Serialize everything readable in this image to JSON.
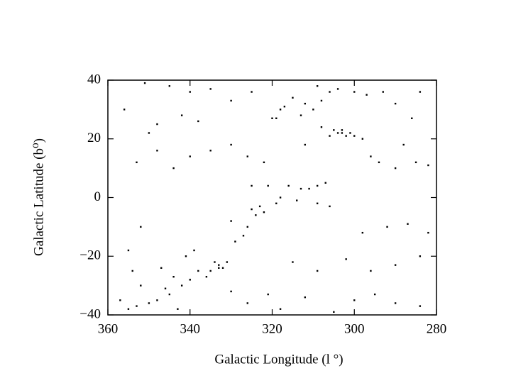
{
  "chart_data": {
    "type": "scatter",
    "x_label": "Galactic Longitude (l °)",
    "y_label": "Galactic Latitude (b⁰)",
    "xlim": [
      360,
      280
    ],
    "ylim": [
      -40,
      40
    ],
    "xticks": [
      360,
      340,
      320,
      300,
      280
    ],
    "yticks": [
      40,
      20,
      0,
      {
        "value": -20,
        "label": "−20"
      },
      {
        "value": -40,
        "label": "−40"
      }
    ],
    "color": "#000000",
    "grid": false,
    "x": [
      303,
      302,
      304,
      301,
      305,
      300,
      303,
      306,
      298,
      308,
      333,
      332,
      334,
      333,
      335,
      331,
      336,
      338,
      340,
      342,
      320,
      319,
      317,
      318,
      313,
      312,
      310,
      315,
      308,
      306,
      345,
      348,
      350,
      353,
      355,
      346,
      344,
      341,
      339,
      352,
      327,
      329,
      326,
      324,
      323,
      325,
      322,
      319,
      318,
      316,
      321,
      325,
      311,
      309,
      307,
      313,
      314,
      309,
      306,
      330,
      296,
      294,
      290,
      285,
      282,
      288,
      286,
      290,
      293,
      284,
      300,
      297,
      304,
      309,
      325,
      330,
      335,
      340,
      345,
      351,
      342,
      338,
      350,
      348,
      353,
      340,
      335,
      330,
      326,
      322,
      330,
      326,
      321,
      318,
      312,
      305,
      300,
      295,
      290,
      284,
      298,
      292,
      287,
      282,
      284,
      290,
      296,
      302,
      309,
      315,
      355,
      352,
      347,
      354,
      343,
      357,
      348,
      356,
      344,
      312
    ],
    "values": [
      22,
      21,
      22,
      22,
      23,
      21,
      23,
      21,
      20,
      24,
      -23,
      -24,
      -22,
      -24,
      -25,
      -22,
      -27,
      -25,
      -28,
      -30,
      27,
      27,
      31,
      30,
      28,
      32,
      30,
      34,
      33,
      36,
      -33,
      -35,
      -36,
      -37,
      -38,
      -31,
      -27,
      -20,
      -18,
      -30,
      -13,
      -15,
      -10,
      -6,
      -3,
      -4,
      -5,
      -2,
      0,
      4,
      4,
      4,
      3,
      4,
      5,
      3,
      -1,
      -2,
      -3,
      -8,
      14,
      12,
      10,
      12,
      11,
      18,
      27,
      32,
      36,
      36,
      36,
      35,
      37,
      38,
      36,
      33,
      37,
      36,
      38,
      39,
      28,
      26,
      22,
      16,
      12,
      14,
      16,
      18,
      14,
      12,
      -32,
      -36,
      -33,
      -38,
      -34,
      -39,
      -35,
      -33,
      -36,
      -37,
      -12,
      -10,
      -9,
      -12,
      -20,
      -23,
      -25,
      -21,
      -25,
      -22,
      -18,
      -10,
      -24,
      -25,
      -38,
      -35,
      25,
      30,
      10,
      18
    ]
  }
}
